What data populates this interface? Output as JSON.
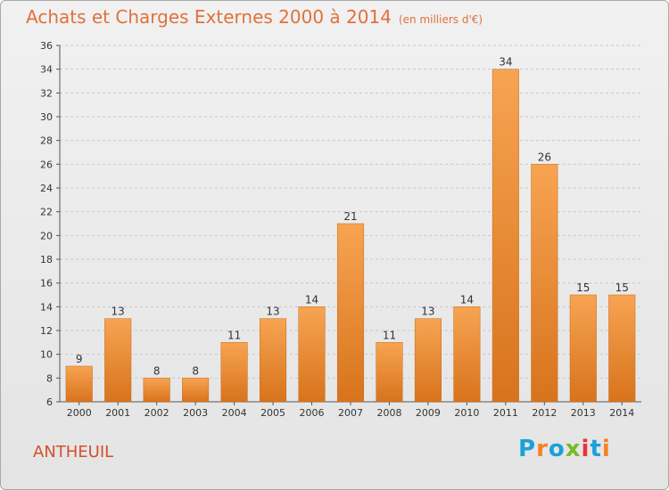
{
  "chart_data": {
    "type": "bar",
    "title": "Achats et Charges Externes 2000 à 2014",
    "units_label": "(en milliers d'€)",
    "categories": [
      "2000",
      "2001",
      "2002",
      "2003",
      "2004",
      "2005",
      "2006",
      "2007",
      "2008",
      "2009",
      "2010",
      "2011",
      "2012",
      "2013",
      "2014"
    ],
    "values": [
      9,
      13,
      8,
      8,
      11,
      13,
      14,
      21,
      11,
      13,
      14,
      34,
      26,
      15,
      15
    ],
    "ylim": [
      6,
      36
    ],
    "yticks": [
      6,
      8,
      10,
      12,
      14,
      16,
      18,
      20,
      22,
      24,
      26,
      28,
      30,
      32,
      34,
      36
    ],
    "grid": true,
    "bar_color": "#f08a2e"
  },
  "location": "ANTHEUIL",
  "brand": {
    "letters": [
      "P",
      "r",
      "o",
      "x",
      "i",
      "t",
      "i"
    ],
    "colors": [
      "#1aa1d9",
      "#f58220",
      "#1aa1d9",
      "#7ab929",
      "#e8343a",
      "#1aa1d9",
      "#f58220"
    ]
  }
}
